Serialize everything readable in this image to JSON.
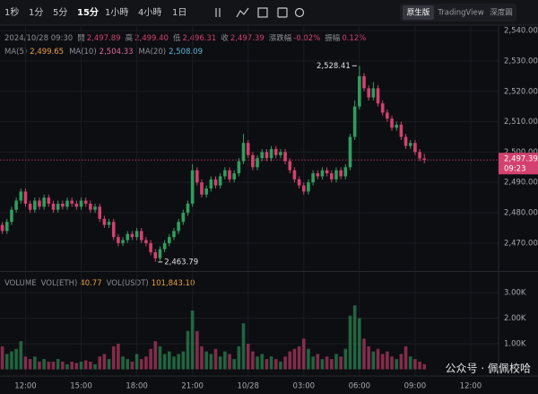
{
  "toolbar": {
    "intervals": [
      "1秒",
      "1分",
      "5分",
      "15分",
      "1小時",
      "4小時",
      "1日"
    ],
    "active_interval": 3,
    "views": [
      "原生版",
      "TradingView",
      "深度圖"
    ],
    "active_view": 0
  },
  "info": {
    "datetime": "2024/10/28 09:30",
    "fields": [
      {
        "label": "開",
        "value": "2,497.89"
      },
      {
        "label": "高",
        "value": "2,499.40"
      },
      {
        "label": "低",
        "value": "2,496.31"
      },
      {
        "label": "收",
        "value": "2,497.39"
      },
      {
        "label": "漲跌幅",
        "value": "-0.02%"
      },
      {
        "label": "振幅",
        "value": "0.12%"
      }
    ]
  },
  "ma": [
    {
      "name": "MA(5)",
      "value": "2,499.65",
      "color": "#e8a23a"
    },
    {
      "name": "MA(10)",
      "value": "2,504.33",
      "color": "#d9699a"
    },
    {
      "name": "MA(20)",
      "value": "2,508.09",
      "color": "#5fb6d6"
    }
  ],
  "volume_header": {
    "title": "VOLUME",
    "items": [
      {
        "name": "VOL(ETH)",
        "value": "40.77"
      },
      {
        "name": "VOL(USDT)",
        "value": "101,843.10"
      }
    ]
  },
  "watermark": "公众号 · 佩佩校哈",
  "chart_data": {
    "type": "candlestick",
    "up_color": "#2f9e5e",
    "down_color": "#d2416f",
    "open": [
      2476,
      2474,
      2477,
      2481,
      2484,
      2487,
      2483,
      2481,
      2484,
      2482,
      2485,
      2483,
      2481,
      2483,
      2482,
      2484,
      2483,
      2482,
      2484,
      2483,
      2481,
      2482,
      2478,
      2476,
      2477,
      2472,
      2470,
      2471,
      2473,
      2472,
      2474,
      2471,
      2470,
      2467,
      2465,
      2468,
      2470,
      2472,
      2474,
      2477,
      2480,
      2483,
      2494,
      2490,
      2486,
      2488,
      2491,
      2489,
      2492,
      2494,
      2491,
      2493,
      2497,
      2503,
      2499,
      2495,
      2498,
      2500,
      2498,
      2501,
      2499,
      2500,
      2497,
      2494,
      2491,
      2489,
      2487,
      2490,
      2493,
      2492,
      2494,
      2493,
      2491,
      2494,
      2492,
      2495,
      2505,
      2515,
      2525,
      2521,
      2518,
      2521,
      2516,
      2513,
      2511,
      2508,
      2509,
      2505,
      2502,
      2503,
      2500,
      2497.89
    ],
    "high": [
      2477,
      2478,
      2482,
      2485,
      2488,
      2488,
      2484,
      2485,
      2485,
      2486,
      2486,
      2484,
      2484,
      2484,
      2485,
      2485,
      2484,
      2485,
      2485,
      2484,
      2483,
      2483,
      2479,
      2478,
      2478,
      2473,
      2472,
      2474,
      2474,
      2475,
      2475,
      2472,
      2471,
      2468,
      2469,
      2471,
      2473,
      2475,
      2478,
      2481,
      2484,
      2496,
      2495,
      2491,
      2489,
      2492,
      2492,
      2493,
      2495,
      2495,
      2494,
      2498,
      2506,
      2504,
      2500,
      2499,
      2501,
      2501,
      2502,
      2502,
      2501,
      2501,
      2498,
      2495,
      2492,
      2490,
      2491,
      2494,
      2494,
      2495,
      2495,
      2494,
      2495,
      2495,
      2496,
      2506,
      2517,
      2528.41,
      2526,
      2522,
      2523,
      2522,
      2517,
      2514,
      2512,
      2510,
      2510,
      2506,
      2504,
      2504,
      2501,
      2499.4
    ],
    "low": [
      2473,
      2473,
      2476,
      2480,
      2483,
      2482,
      2480,
      2480,
      2481,
      2481,
      2482,
      2480,
      2480,
      2481,
      2481,
      2482,
      2481,
      2481,
      2482,
      2480,
      2480,
      2477,
      2475,
      2475,
      2471,
      2469,
      2469,
      2470,
      2471,
      2471,
      2470,
      2469,
      2466,
      2463.79,
      2464,
      2467,
      2469,
      2471,
      2473,
      2476,
      2479,
      2482,
      2489,
      2485,
      2485,
      2487,
      2488,
      2488,
      2491,
      2490,
      2490,
      2492,
      2496,
      2498,
      2494,
      2494,
      2497,
      2497,
      2497,
      2498,
      2498,
      2496,
      2493,
      2490,
      2488,
      2486,
      2486,
      2489,
      2491,
      2491,
      2492,
      2490,
      2490,
      2491,
      2491,
      2494,
      2504,
      2514,
      2520,
      2517,
      2517,
      2515,
      2512,
      2510,
      2507,
      2507,
      2504,
      2501,
      2501,
      2499,
      2497,
      2496.31
    ],
    "close": [
      2474,
      2477,
      2481,
      2484,
      2487,
      2483,
      2481,
      2484,
      2482,
      2485,
      2483,
      2481,
      2483,
      2482,
      2484,
      2483,
      2482,
      2484,
      2483,
      2481,
      2482,
      2478,
      2476,
      2477,
      2472,
      2470,
      2471,
      2473,
      2472,
      2474,
      2471,
      2470,
      2467,
      2465,
      2468,
      2470,
      2472,
      2474,
      2477,
      2480,
      2483,
      2494,
      2490,
      2486,
      2488,
      2491,
      2489,
      2492,
      2494,
      2491,
      2493,
      2497,
      2503,
      2499,
      2495,
      2498,
      2500,
      2498,
      2501,
      2499,
      2500,
      2497,
      2494,
      2491,
      2489,
      2487,
      2490,
      2493,
      2492,
      2494,
      2493,
      2491,
      2494,
      2492,
      2495,
      2505,
      2515,
      2525,
      2521,
      2518,
      2521,
      2516,
      2513,
      2511,
      2508,
      2509,
      2505,
      2502,
      2503,
      2500,
      2497.89,
      2497.39
    ],
    "volume": [
      900,
      600,
      700,
      800,
      1100,
      500,
      400,
      500,
      300,
      400,
      300,
      300,
      400,
      300,
      200,
      300,
      250,
      300,
      350,
      300,
      200,
      500,
      600,
      400,
      900,
      1000,
      500,
      400,
      300,
      600,
      400,
      500,
      800,
      1100,
      900,
      600,
      700,
      500,
      600,
      700,
      1500,
      2300,
      1500,
      900,
      700,
      600,
      800,
      500,
      700,
      600,
      400,
      900,
      1800,
      1000,
      700,
      500,
      600,
      400,
      500,
      400,
      300,
      500,
      700,
      800,
      900,
      1200,
      800,
      500,
      600,
      400,
      500,
      400,
      600,
      500,
      800,
      2100,
      2500,
      2000,
      1200,
      900,
      700,
      800,
      600,
      700,
      500,
      400,
      600,
      900,
      500,
      400,
      300,
      200
    ],
    "ylim": [
      2461.4,
      2541.8
    ],
    "yticks": [
      {
        "value": 2470,
        "label": "2,470.00"
      },
      {
        "value": 2480,
        "label": "2,480.00"
      },
      {
        "value": 2490,
        "label": "2,490.00"
      },
      {
        "value": 2500,
        "label": "2,500.00"
      },
      {
        "value": 2510,
        "label": "2,510.00"
      },
      {
        "value": 2520,
        "label": "2,520.00"
      },
      {
        "value": 2530,
        "label": "2,530.00"
      },
      {
        "value": 2540,
        "label": "2,540.00"
      }
    ],
    "vol_ylim": [
      0,
      3740
    ],
    "vol_yticks": [
      {
        "value": 1000,
        "label": "1.00K"
      },
      {
        "value": 2000,
        "label": "2.00K"
      },
      {
        "value": 3000,
        "label": "3.00K"
      }
    ],
    "xlim": [
      -0.5,
      107
    ],
    "xticks": [
      {
        "value": 5,
        "label": "12:00"
      },
      {
        "value": 17,
        "label": "15:00"
      },
      {
        "value": 29,
        "label": "18:00"
      },
      {
        "value": 41,
        "label": "21:00"
      },
      {
        "value": 53,
        "label": "10/28"
      },
      {
        "value": 65,
        "label": "03:00"
      },
      {
        "value": 77,
        "label": "06:00"
      },
      {
        "value": 89,
        "label": "09:00"
      },
      {
        "value": 101,
        "label": "12:00"
      }
    ],
    "grid": true,
    "last_price": {
      "value": 2497.39,
      "label": "2,497.39",
      "countdown": "09:23"
    },
    "annotations": [
      {
        "index": 77,
        "value": 2528.41,
        "label": "2,528.41",
        "side": "left"
      },
      {
        "index": 33,
        "value": 2463.79,
        "label": "2,463.79",
        "side": "right"
      }
    ]
  }
}
